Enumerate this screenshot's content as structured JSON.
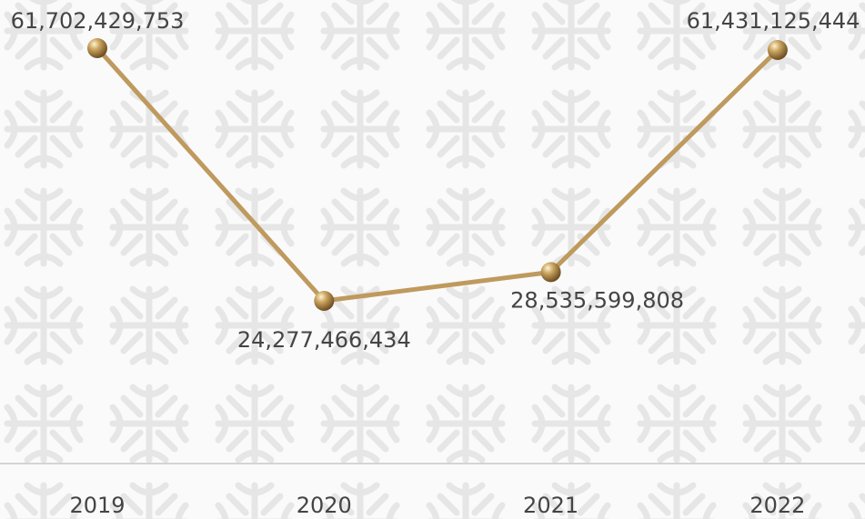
{
  "chart_data": {
    "type": "line",
    "categories": [
      "2019",
      "2020",
      "2021",
      "2022"
    ],
    "values": [
      61702429753,
      24277466434,
      28535599808,
      61431125444
    ],
    "value_labels": [
      "61,702,429,753",
      "24,277,466,434",
      "28,535,599,808",
      "61,431,125,444"
    ],
    "color": "#bf9a5e"
  }
}
